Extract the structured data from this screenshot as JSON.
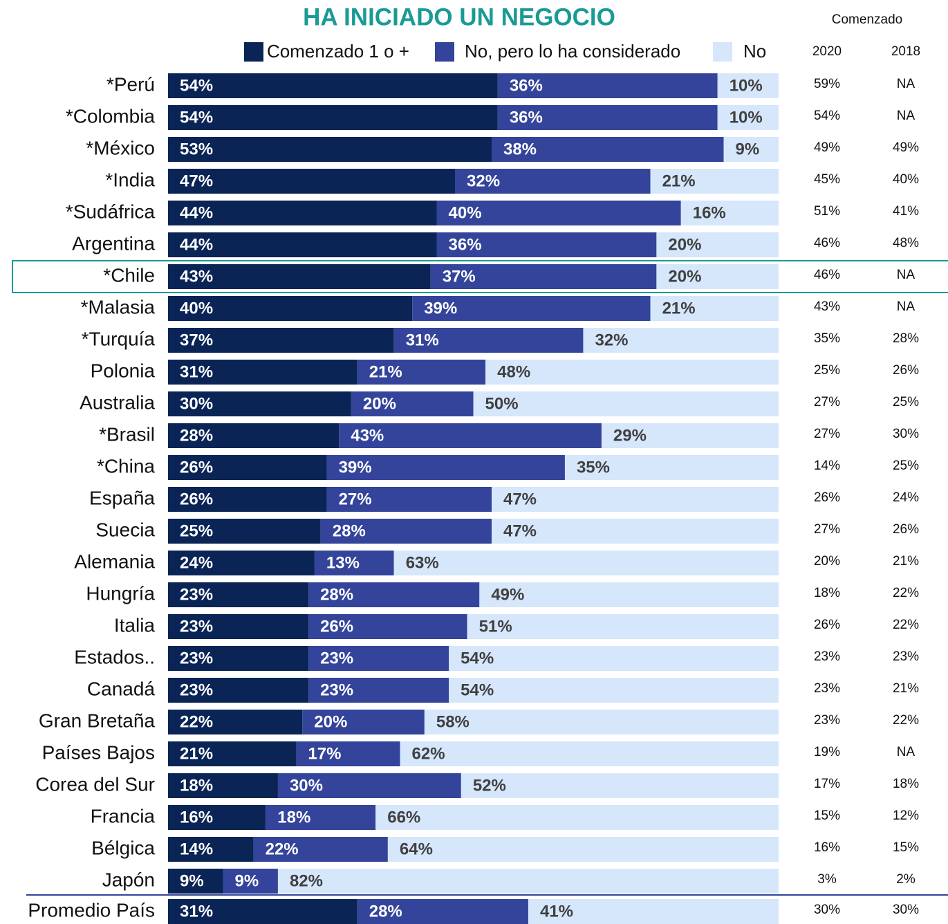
{
  "chart_data": {
    "type": "stacked_bar_horizontal_100",
    "title": "HA INICIADO UN NEGOCIO",
    "categories": [
      "*Perú",
      "*Colombia",
      "*México",
      "*India",
      "*Sudáfrica",
      "Argentina",
      "*Chile",
      "*Malasia",
      "*Turquía",
      "Polonia",
      "Australia",
      "*Brasil",
      "*China",
      "España",
      "Suecia",
      "Alemania",
      "Hungría",
      "Italia",
      "Estados..",
      "Canadá",
      "Gran Bretaña",
      "Países Bajos",
      "Corea del Sur",
      "Francia",
      "Bélgica",
      "Japón",
      "Promedio País"
    ],
    "xlim": [
      0,
      100
    ],
    "series": [
      {
        "name": "Comenzado 1 o +",
        "color": "#0a2456",
        "label_color": "#ffffff",
        "values": [
          54,
          54,
          53,
          47,
          44,
          44,
          43,
          40,
          37,
          31,
          30,
          28,
          26,
          26,
          25,
          24,
          23,
          23,
          23,
          23,
          22,
          21,
          18,
          16,
          14,
          9,
          31
        ],
        "value_labels": [
          "54%",
          "54%",
          "53%",
          "47%",
          "44%",
          "44%",
          "43%",
          "40%",
          "37%",
          "31%",
          "30%",
          "28%",
          "26%",
          "26%",
          "25%",
          "24%",
          "23%",
          "23%",
          "23%",
          "23%",
          "22%",
          "21%",
          "18%",
          "16%",
          "14%",
          "9%",
          "31%"
        ]
      },
      {
        "name": "No, pero lo ha considerado",
        "color": "#33449a",
        "label_color": "#ffffff",
        "values": [
          36,
          36,
          38,
          32,
          40,
          36,
          37,
          39,
          31,
          21,
          20,
          43,
          39,
          27,
          28,
          13,
          28,
          26,
          23,
          23,
          20,
          17,
          30,
          18,
          22,
          9,
          28
        ],
        "value_labels": [
          "36%",
          "36%",
          "38%",
          "32%",
          "40%",
          "36%",
          "37%",
          "39%",
          "31%",
          "21%",
          "20%",
          "43%",
          "39%",
          "27%",
          "28%",
          "13%",
          "28%",
          "26%",
          "23%",
          "23%",
          "20%",
          "17%",
          "30%",
          "18%",
          "22%",
          "9%",
          "28%"
        ]
      },
      {
        "name": "No",
        "color": "#d6e6fb",
        "label_color": "#404040",
        "values": [
          10,
          10,
          9,
          21,
          16,
          20,
          20,
          21,
          32,
          48,
          50,
          29,
          35,
          47,
          47,
          63,
          49,
          51,
          54,
          54,
          58,
          62,
          52,
          66,
          64,
          82,
          41
        ],
        "value_labels": [
          "10%",
          "10%",
          "9%",
          "21%",
          "16%",
          "20%",
          "20%",
          "21%",
          "32%",
          "48%",
          "50%",
          "29%",
          "35%",
          "47%",
          "47%",
          "63%",
          "49%",
          "51%",
          "54%",
          "54%",
          "58%",
          "62%",
          "52%",
          "66%",
          "64%",
          "82%",
          "41%"
        ]
      }
    ],
    "table": {
      "title": "Comenzado",
      "columns": [
        "2020",
        "2018"
      ],
      "rows": [
        [
          "59%",
          "NA"
        ],
        [
          "54%",
          "NA"
        ],
        [
          "49%",
          "49%"
        ],
        [
          "45%",
          "40%"
        ],
        [
          "51%",
          "41%"
        ],
        [
          "46%",
          "48%"
        ],
        [
          "46%",
          "NA"
        ],
        [
          "43%",
          "NA"
        ],
        [
          "35%",
          "28%"
        ],
        [
          "25%",
          "26%"
        ],
        [
          "27%",
          "25%"
        ],
        [
          "27%",
          "30%"
        ],
        [
          "14%",
          "25%"
        ],
        [
          "26%",
          "24%"
        ],
        [
          "27%",
          "26%"
        ],
        [
          "20%",
          "21%"
        ],
        [
          "18%",
          "22%"
        ],
        [
          "26%",
          "22%"
        ],
        [
          "23%",
          "23%"
        ],
        [
          "23%",
          "21%"
        ],
        [
          "23%",
          "22%"
        ],
        [
          "19%",
          "NA"
        ],
        [
          "17%",
          "18%"
        ],
        [
          "15%",
          "12%"
        ],
        [
          "16%",
          "15%"
        ],
        [
          "3%",
          "2%"
        ],
        [
          "30%",
          "30%"
        ]
      ]
    }
  }
}
